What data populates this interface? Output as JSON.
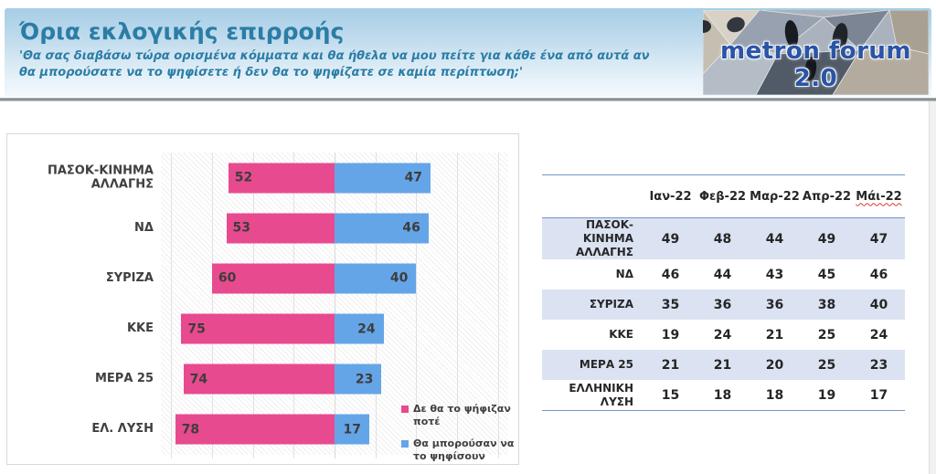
{
  "header": {
    "title": "Όρια εκλογικής επιρροής",
    "subtitle_line1": "'Θα σας διαβάσω τώρα ορισμένα κόμματα και θα ήθελα να μου πείτε για κάθε ένα από αυτά αν",
    "subtitle_line2": "θα μπορούσατε να το ψηφίσετε ή δεν θα το ψηφίζατε σε καμία περίπτωση;'",
    "logo_text": "metron forum 2.0"
  },
  "chart_data": {
    "type": "bar",
    "variant": "horizontal-diverging",
    "title": "Όρια εκλογικής επιρροής",
    "categories": [
      "ΠΑΣΟΚ-ΚΙΝΗΜΑ ΑΛΛΑΓΗΣ",
      "ΝΔ",
      "ΣΥΡΙΖΑ",
      "ΚΚΕ",
      "ΜΕΡΑ 25",
      "ΕΛ. ΛΥΣΗ"
    ],
    "series": [
      {
        "name": "Δε θα το ψήφιζαν ποτέ",
        "direction": "left",
        "color": "#e84a8f",
        "values": [
          52,
          53,
          60,
          75,
          74,
          78
        ]
      },
      {
        "name": "Θα μπορούσαν να το ψηφίσουν",
        "direction": "right",
        "color": "#64a5e8",
        "values": [
          47,
          46,
          40,
          24,
          23,
          17
        ]
      }
    ],
    "axis_max_per_side": 85,
    "gridline_step": 20,
    "grid": true,
    "legend_position": "bottom-right"
  },
  "table": {
    "columns": [
      "Ιαν-22",
      "Φεβ-22",
      "Μαρ-22",
      "Απρ-22",
      "Μάι-22"
    ],
    "spellcheck_underline_column": 4,
    "rows": [
      {
        "label": "ΠΑΣΟΚ-ΚΙΝΗΜΑ ΑΛΛΑΓΗΣ",
        "values": [
          49,
          48,
          44,
          49,
          47
        ]
      },
      {
        "label": "ΝΔ",
        "values": [
          46,
          44,
          43,
          45,
          46
        ]
      },
      {
        "label": "ΣΥΡΙΖΑ",
        "values": [
          35,
          36,
          36,
          38,
          40
        ]
      },
      {
        "label": "ΚΚΕ",
        "values": [
          19,
          24,
          21,
          25,
          24
        ]
      },
      {
        "label": "ΜΕΡΑ 25",
        "values": [
          21,
          21,
          20,
          25,
          23
        ]
      },
      {
        "label": "ΕΛΛΗΝΙΚΗ ΛΥΣΗ",
        "values": [
          15,
          18,
          18,
          19,
          17
        ]
      }
    ]
  },
  "colors": {
    "never_vote_pink": "#e84a8f",
    "could_vote_blue": "#64a5e8",
    "header_text_teal": "#2b7da6",
    "logo_blue": "#2b54a6",
    "table_line_blue": "#7493c8",
    "table_row_shade": "#dbe2f1",
    "value_text": "#3d3d3d"
  }
}
